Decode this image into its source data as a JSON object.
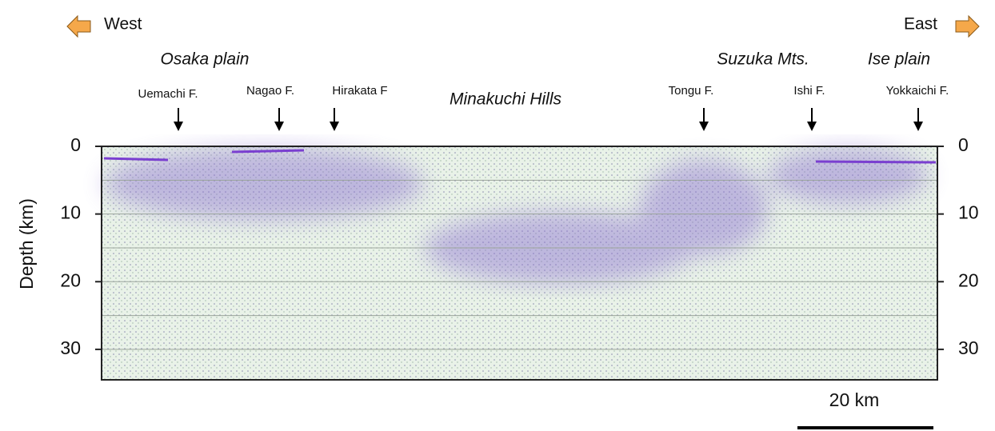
{
  "directions": {
    "west": "West",
    "east": "East"
  },
  "regions": [
    "Osaka plain",
    "Minakuchi Hills",
    "Suzuka Mts.",
    "Ise plain"
  ],
  "faults": [
    "Uemachi F.",
    "Nagao F.",
    "Hirakata F",
    "Tongu F.",
    "Ishi F.",
    "Yokkaichi F."
  ],
  "depth_axis": {
    "label": "Depth (km)",
    "ylim": [
      0,
      34.5
    ],
    "ticks": [
      0,
      10,
      20,
      30
    ],
    "grid_lines": [
      5,
      10,
      15,
      20,
      25,
      30
    ]
  },
  "scale_bar": "20 km"
}
